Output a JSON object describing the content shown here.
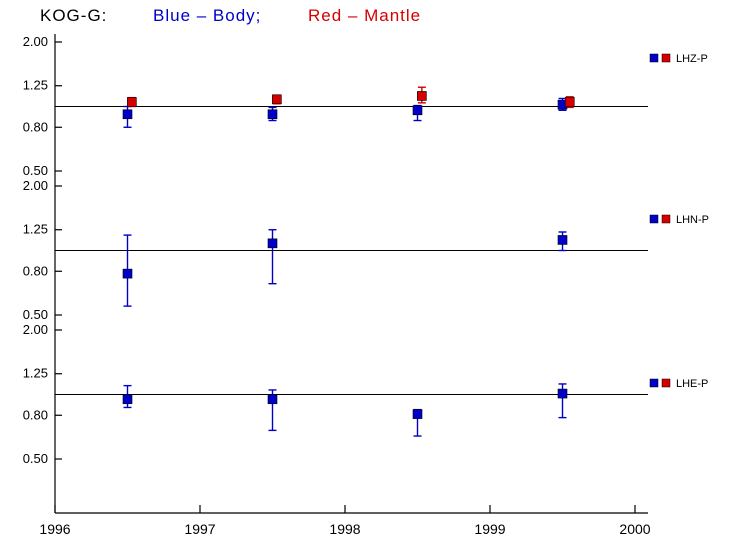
{
  "title": {
    "station": "KOG-G:",
    "body_label": "Blue – Body;",
    "mantle_label": "Red – Mantle"
  },
  "colors": {
    "blue": "#0000c8",
    "red": "#d40000",
    "axis": "#000000",
    "background": "#ffffff"
  },
  "chart_data": {
    "type": "scatter",
    "x_ticks": [
      1996,
      1997,
      1998,
      1999,
      2000
    ],
    "xlim": [
      1996,
      2000
    ],
    "y_ticks": [
      2.0,
      1.25,
      0.8,
      0.5
    ],
    "y_scale": "log",
    "grid": false,
    "legend_position": "right-of-each-panel",
    "legend_series": [
      {
        "name": "Body",
        "color": "blue"
      },
      {
        "name": "Mantle",
        "color": "red"
      }
    ],
    "panels": [
      {
        "label": "LHZ-P",
        "reference_line": 1.0,
        "series": [
          {
            "name": "Body",
            "color": "blue",
            "points": [
              {
                "x": 1996.5,
                "y": 0.92,
                "lo": 0.8,
                "hi": 1.0
              },
              {
                "x": 1997.5,
                "y": 0.92,
                "lo": 0.86,
                "hi": 0.99
              },
              {
                "x": 1998.5,
                "y": 0.96,
                "lo": 0.86,
                "hi": 1.01
              },
              {
                "x": 1999.5,
                "y": 1.02,
                "lo": 0.96,
                "hi": 1.09
              }
            ]
          },
          {
            "name": "Mantle",
            "color": "red",
            "points": [
              {
                "x": 1996.53,
                "y": 1.05,
                "lo": 1.0,
                "hi": 1.1
              },
              {
                "x": 1997.53,
                "y": 1.08,
                "lo": 1.03,
                "hi": 1.13
              },
              {
                "x": 1998.53,
                "y": 1.12,
                "lo": 1.04,
                "hi": 1.23
              },
              {
                "x": 1999.55,
                "y": 1.05,
                "lo": 0.99,
                "hi": 1.11
              }
            ]
          }
        ]
      },
      {
        "label": "LHN-P",
        "reference_line": 1.0,
        "series": [
          {
            "name": "Body",
            "color": "blue",
            "points": [
              {
                "x": 1996.5,
                "y": 0.78,
                "lo": 0.55,
                "hi": 1.18
              },
              {
                "x": 1997.5,
                "y": 1.08,
                "lo": 0.7,
                "hi": 1.25
              },
              {
                "x": 1999.5,
                "y": 1.12,
                "lo": 1.0,
                "hi": 1.22
              }
            ]
          },
          {
            "name": "Mantle",
            "color": "red",
            "points": []
          }
        ]
      },
      {
        "label": "LHE-P",
        "reference_line": 1.0,
        "series": [
          {
            "name": "Body",
            "color": "blue",
            "points": [
              {
                "x": 1996.5,
                "y": 0.95,
                "lo": 0.87,
                "hi": 1.1
              },
              {
                "x": 1997.5,
                "y": 0.95,
                "lo": 0.68,
                "hi": 1.05
              },
              {
                "x": 1998.5,
                "y": 0.81,
                "lo": 0.64,
                "hi": 0.85
              },
              {
                "x": 1999.5,
                "y": 1.01,
                "lo": 0.78,
                "hi": 1.12
              }
            ]
          },
          {
            "name": "Mantle",
            "color": "red",
            "points": []
          }
        ]
      }
    ]
  }
}
